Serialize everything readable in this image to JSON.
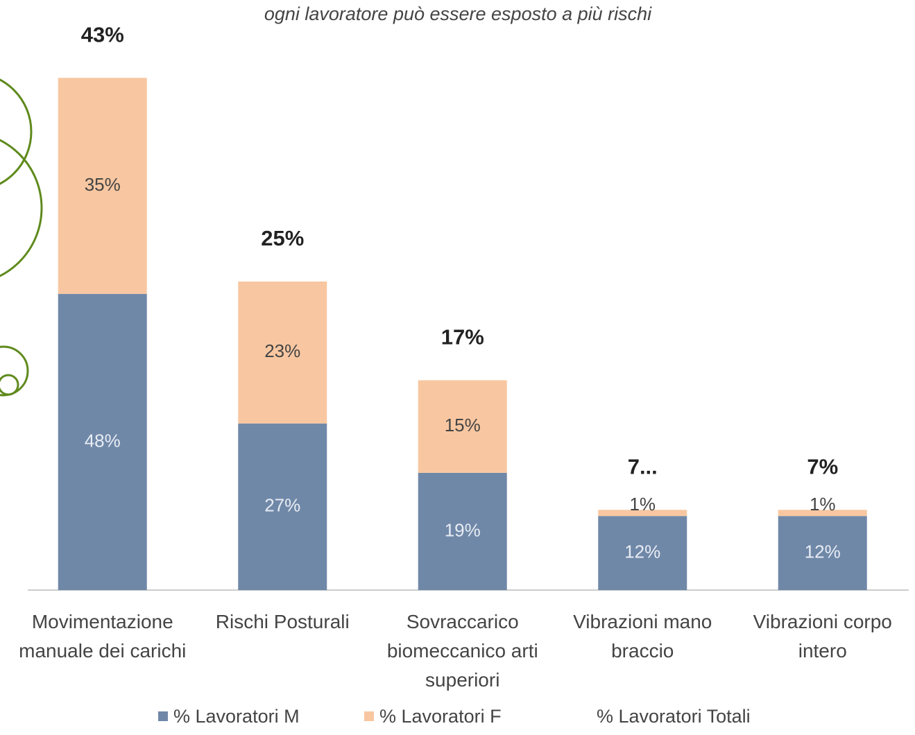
{
  "chart_data": {
    "type": "bar",
    "stacked": true,
    "subtitle": "ogni lavoratore può essere esposto a più rischi",
    "categories": [
      "Movimentazione manuale dei carichi",
      "Rischi Posturali",
      "Sovraccarico biomeccanico arti superiori",
      "Vibrazioni mano braccio",
      "Vibrazioni corpo intero"
    ],
    "series": [
      {
        "name": "% Lavoratori M",
        "color": "#7088a8",
        "values": [
          48,
          27,
          19,
          12,
          12
        ],
        "value_labels": [
          "48%",
          "27%",
          "19%",
          "12%",
          "12%"
        ]
      },
      {
        "name": "% Lavoratori F",
        "color": "#f8c7a1",
        "values": [
          35,
          23,
          15,
          1,
          1
        ],
        "value_labels": [
          "35%",
          "23%",
          "15%",
          "1%",
          "1%"
        ]
      },
      {
        "name": "% Lavoratori Totali",
        "values": [
          43,
          25,
          17,
          7,
          7
        ],
        "value_labels": [
          "43%",
          "25%",
          "17%",
          "7...",
          "7%"
        ]
      }
    ]
  }
}
